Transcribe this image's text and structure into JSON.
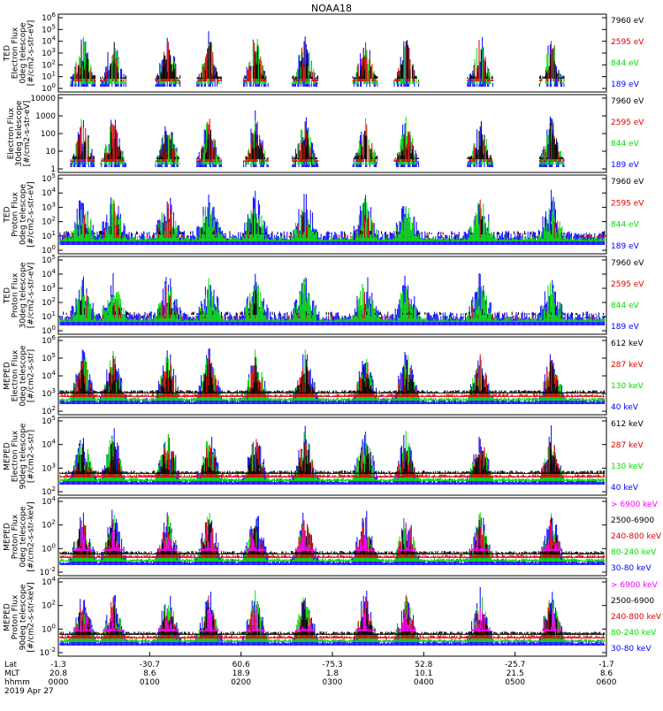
{
  "title": "NOAA18",
  "colors": {
    "black": "#000000",
    "red": "#e00000",
    "green": "#00e000",
    "blue": "#0000ff",
    "magenta": "#ff00ff"
  },
  "chart_data": [
    {
      "type": "line",
      "instrument": "TED",
      "ylabel_lines": [
        "TED",
        "Electron Flux",
        "0deg telescope",
        "[#/cm2-s-str-eV]"
      ],
      "scale": "log",
      "ytick_labels": [
        "10^0",
        "10^1",
        "10^2",
        "10^3",
        "10^4",
        "10^5",
        "10^6"
      ],
      "series": [
        {
          "name": "7960 eV",
          "color": "black"
        },
        {
          "name": "2595 eV",
          "color": "red"
        },
        {
          "name": "844 eV",
          "color": "green"
        },
        {
          "name": "189 eV",
          "color": "blue"
        }
      ]
    },
    {
      "type": "line",
      "instrument": "TED",
      "ylabel_lines": [
        "Electron Flux",
        "30deg telescope",
        "[#/cm2-s-str-eV]"
      ],
      "scale": "log",
      "ytick_labels": [
        "1",
        "10",
        "100",
        "1000",
        "10000"
      ],
      "series": [
        {
          "name": "7960 eV",
          "color": "black"
        },
        {
          "name": "2595 eV",
          "color": "red"
        },
        {
          "name": "844 eV",
          "color": "green"
        },
        {
          "name": "189 eV",
          "color": "blue"
        }
      ]
    },
    {
      "type": "line",
      "instrument": "TED",
      "ylabel_lines": [
        "TED",
        "Proton Flux",
        "0deg telescope",
        "[#/cm2-s-str-eV]"
      ],
      "scale": "log",
      "ytick_labels": [
        "10^0",
        "10^1",
        "10^2",
        "10^3",
        "10^4",
        "10^5"
      ],
      "series": [
        {
          "name": "7960 eV",
          "color": "black"
        },
        {
          "name": "2595 eV",
          "color": "red"
        },
        {
          "name": "844 eV",
          "color": "green"
        },
        {
          "name": "189 eV",
          "color": "blue"
        }
      ]
    },
    {
      "type": "line",
      "instrument": "TED",
      "ylabel_lines": [
        "TED",
        "Proton Flux",
        "30deg telescope",
        "[#/cm2-s-str-eV]"
      ],
      "scale": "log",
      "ytick_labels": [
        "10^0",
        "10^1",
        "10^2",
        "10^3",
        "10^4",
        "10^5"
      ],
      "series": [
        {
          "name": "7960 eV",
          "color": "black"
        },
        {
          "name": "2595 eV",
          "color": "red"
        },
        {
          "name": "844 eV",
          "color": "green"
        },
        {
          "name": "189 eV",
          "color": "blue"
        }
      ]
    },
    {
      "type": "line",
      "instrument": "MEPED",
      "ylabel_lines": [
        "MEPED",
        "Electron Flux",
        "0deg telescope",
        "[#/cm2-s-str]"
      ],
      "scale": "log",
      "ytick_labels": [
        "10^2",
        "10^3",
        "10^4",
        "10^5",
        "10^6"
      ],
      "series": [
        {
          "name": "612 keV",
          "color": "black"
        },
        {
          "name": "287 keV",
          "color": "red"
        },
        {
          "name": "130 keV",
          "color": "green"
        },
        {
          "name": "40 keV",
          "color": "blue"
        }
      ]
    },
    {
      "type": "line",
      "instrument": "MEPED",
      "ylabel_lines": [
        "MEPED",
        "Electron Flux",
        "90deg telescope",
        "[#/cm2-s-str]"
      ],
      "scale": "log",
      "ytick_labels": [
        "10^2",
        "10^3",
        "10^4",
        "10^5"
      ],
      "series": [
        {
          "name": "612 keV",
          "color": "black"
        },
        {
          "name": "287 keV",
          "color": "red"
        },
        {
          "name": "130 keV",
          "color": "green"
        },
        {
          "name": "40 keV",
          "color": "blue"
        }
      ]
    },
    {
      "type": "line",
      "instrument": "MEPED",
      "ylabel_lines": [
        "MEPED",
        "Proton Flux",
        "0deg telescope",
        "[#/cm2-s-str-keV]"
      ],
      "scale": "log",
      "ytick_labels": [
        "10^-2",
        "10^0",
        "10^2",
        "10^4"
      ],
      "series": [
        {
          "name": "> 6900 keV",
          "color": "magenta"
        },
        {
          "name": "2500-6900",
          "color": "black"
        },
        {
          "name": "240-800 keV",
          "color": "red"
        },
        {
          "name": "80-240 keV",
          "color": "green"
        },
        {
          "name": "30-80 keV",
          "color": "blue"
        }
      ]
    },
    {
      "type": "line",
      "instrument": "MEPED",
      "ylabel_lines": [
        "MEPED",
        "Proton Flux",
        "90deg telescope",
        "[#/cm2-s-str-keV]"
      ],
      "scale": "log",
      "ytick_labels": [
        "10^-2",
        "10^0",
        "10^2",
        "10^4"
      ],
      "series": [
        {
          "name": "> 6900 keV",
          "color": "magenta"
        },
        {
          "name": "2500-6900",
          "color": "black"
        },
        {
          "name": "240-800 keV",
          "color": "red"
        },
        {
          "name": "80-240 keV",
          "color": "green"
        },
        {
          "name": "30-80 keV",
          "color": "blue"
        }
      ]
    }
  ],
  "x_axis": {
    "row_labels": [
      "Lat",
      "MLT",
      "hhmm"
    ],
    "columns": [
      {
        "lat": "-1.3",
        "mlt": "20.8",
        "hhmm": "0000"
      },
      {
        "lat": "-30.7",
        "mlt": "8.6",
        "hhmm": "0100"
      },
      {
        "lat": "60.6",
        "mlt": "18.9",
        "hhmm": "0200"
      },
      {
        "lat": "-75.3",
        "mlt": "1.8",
        "hhmm": "0300"
      },
      {
        "lat": "52.8",
        "mlt": "10.1",
        "hhmm": "0400"
      },
      {
        "lat": "-25.7",
        "mlt": "21.5",
        "hhmm": "0500"
      },
      {
        "lat": "-1.7",
        "mlt": "8.6",
        "hhmm": "0600"
      }
    ],
    "date": "2019 Apr 27"
  }
}
